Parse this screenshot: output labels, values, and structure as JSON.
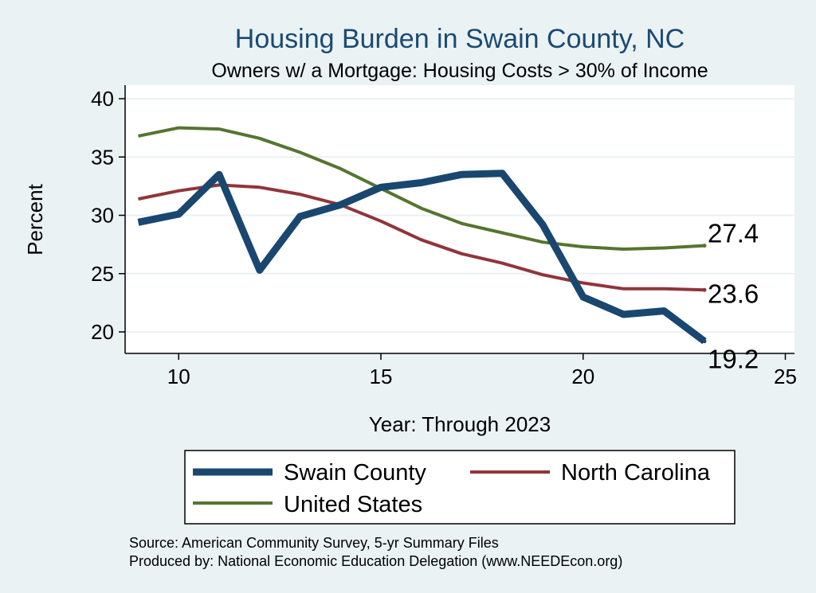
{
  "chart_data": {
    "type": "line",
    "title": "Housing Burden in Swain County, NC",
    "subtitle": "Owners w/ a Mortgage: Housing Costs > 30% of Income",
    "xlabel": "Year: Through 2023",
    "ylabel": "Percent",
    "xlim": [
      9,
      25
    ],
    "ylim": [
      19,
      41
    ],
    "xticks": [
      10,
      15,
      20,
      25
    ],
    "yticks": [
      20,
      25,
      30,
      35,
      40
    ],
    "x": [
      9,
      10,
      11,
      12,
      13,
      14,
      15,
      16,
      17,
      18,
      19,
      20,
      21,
      22,
      23
    ],
    "series": [
      {
        "name": "Swain County",
        "color": "#1a476f",
        "values": [
          29.4,
          30.1,
          33.5,
          25.3,
          29.9,
          30.9,
          32.4,
          32.8,
          33.5,
          33.6,
          29.2,
          23.0,
          21.5,
          21.8,
          19.2
        ],
        "end_label": "19.2"
      },
      {
        "name": "North Carolina",
        "color": "#90353b",
        "values": [
          31.4,
          32.1,
          32.6,
          32.4,
          31.8,
          30.9,
          29.5,
          27.9,
          26.7,
          25.9,
          24.9,
          24.2,
          23.7,
          23.7,
          23.6
        ],
        "end_label": "23.6"
      },
      {
        "name": "United States",
        "color": "#55752f",
        "values": [
          36.8,
          37.5,
          37.4,
          36.6,
          35.4,
          34.0,
          32.3,
          30.6,
          29.3,
          28.5,
          27.7,
          27.3,
          27.1,
          27.2,
          27.4
        ],
        "end_label": "27.4"
      }
    ],
    "legend_position": "bottom"
  },
  "source": {
    "line1": "Source: American Community Survey, 5-yr Summary Files",
    "line2": "Produced by: National Economic Education Delegation (www.NEEDEcon.org)"
  }
}
